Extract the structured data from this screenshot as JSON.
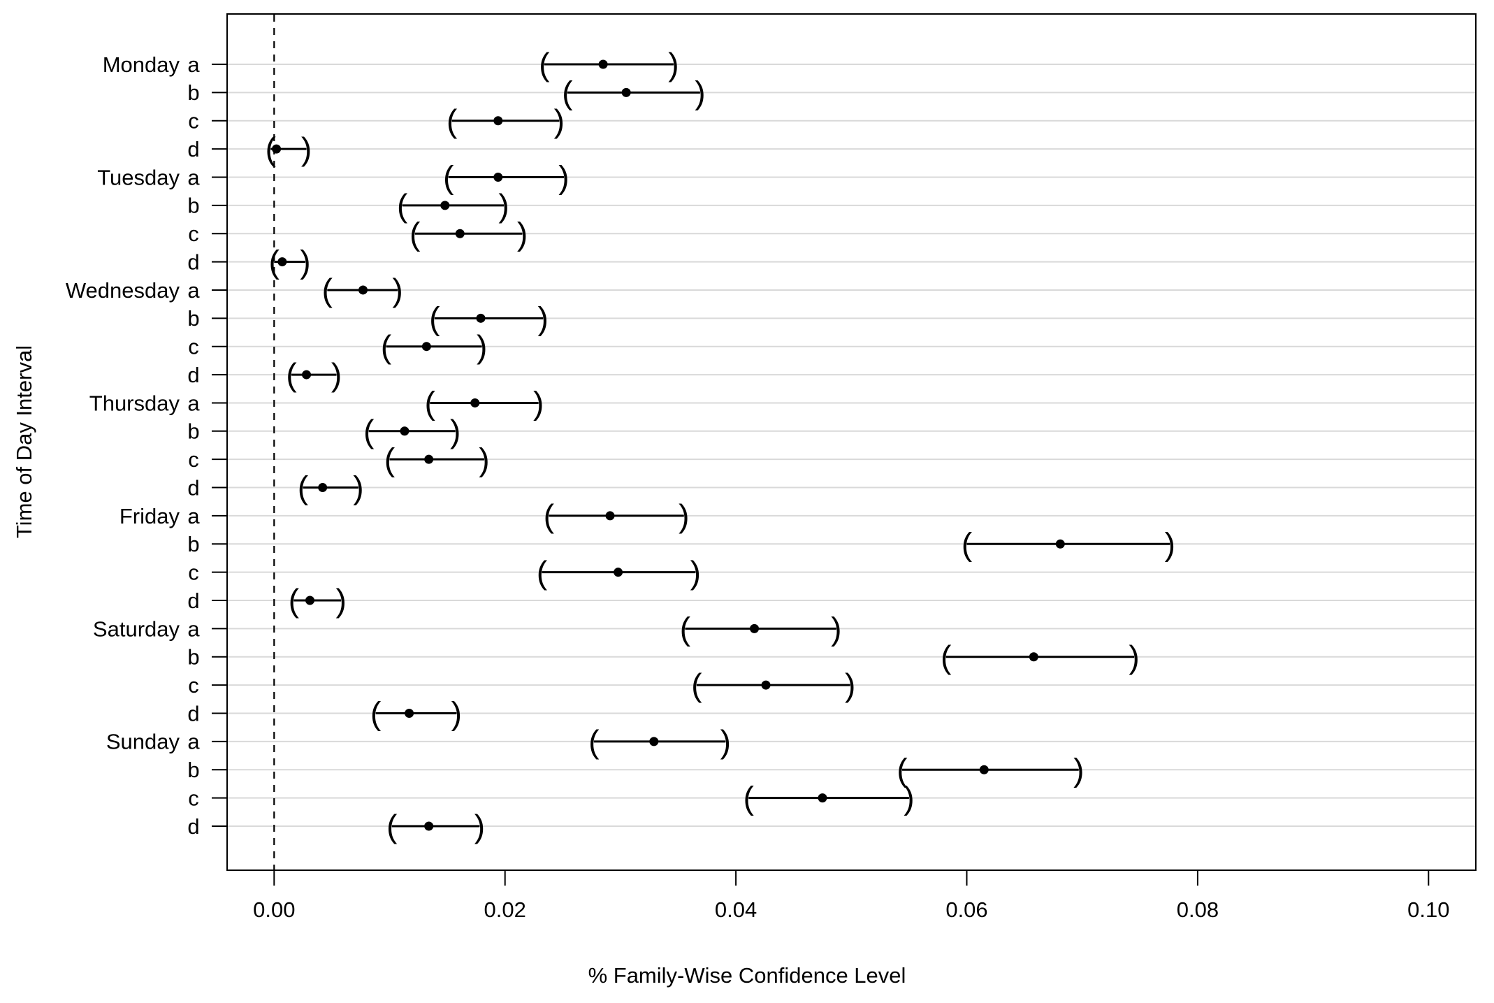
{
  "chart_data": {
    "type": "scatter",
    "variant": "dot-with-confidence-intervals",
    "title": "",
    "xlabel": "% Family-Wise Confidence Level",
    "ylabel": "Time of Day Interval",
    "x_tick_labels": [
      "0.00",
      "0.02",
      "0.04",
      "0.06",
      "0.08",
      "0.10"
    ],
    "x_tick_values": [
      0.0,
      0.02,
      0.04,
      0.06,
      0.08,
      0.1
    ],
    "xlim": [
      -0.0041,
      0.1041
    ],
    "grid": "horizontal-light-gray",
    "legend": "none",
    "reference_line": {
      "x": 0,
      "style": "dashed"
    },
    "interval_endpoint_glyphs": [
      "(",
      ")"
    ],
    "colors": {
      "point": "#000000",
      "interval": "#000000",
      "axis": "#000000",
      "grid": "#d9d9d9",
      "reference": "#000000",
      "background": "#ffffff"
    },
    "groups": [
      {
        "day": "Monday",
        "intervals": [
          {
            "label": "a",
            "estimate": 0.0285,
            "lower": 0.0234,
            "upper": 0.0346
          },
          {
            "label": "b",
            "estimate": 0.0305,
            "lower": 0.0254,
            "upper": 0.0369
          },
          {
            "label": "c",
            "estimate": 0.0194,
            "lower": 0.0154,
            "upper": 0.0247
          },
          {
            "label": "d",
            "estimate": 0.0002,
            "lower": -0.0003,
            "upper": 0.0028
          }
        ]
      },
      {
        "day": "Tuesday",
        "intervals": [
          {
            "label": "a",
            "estimate": 0.0194,
            "lower": 0.0151,
            "upper": 0.0251
          },
          {
            "label": "b",
            "estimate": 0.0148,
            "lower": 0.0111,
            "upper": 0.0199
          },
          {
            "label": "c",
            "estimate": 0.0161,
            "lower": 0.0122,
            "upper": 0.0215
          },
          {
            "label": "d",
            "estimate": 0.0007,
            "lower": 0.0,
            "upper": 0.0027
          }
        ]
      },
      {
        "day": "Wednesday",
        "intervals": [
          {
            "label": "a",
            "estimate": 0.0077,
            "lower": 0.0046,
            "upper": 0.0107
          },
          {
            "label": "b",
            "estimate": 0.0179,
            "lower": 0.0139,
            "upper": 0.0233
          },
          {
            "label": "c",
            "estimate": 0.0132,
            "lower": 0.0097,
            "upper": 0.018
          },
          {
            "label": "d",
            "estimate": 0.0028,
            "lower": 0.0015,
            "upper": 0.0054
          }
        ]
      },
      {
        "day": "Thursday",
        "intervals": [
          {
            "label": "a",
            "estimate": 0.0174,
            "lower": 0.0135,
            "upper": 0.0229
          },
          {
            "label": "b",
            "estimate": 0.0113,
            "lower": 0.0082,
            "upper": 0.0157
          },
          {
            "label": "c",
            "estimate": 0.0134,
            "lower": 0.01,
            "upper": 0.0182
          },
          {
            "label": "d",
            "estimate": 0.0042,
            "lower": 0.0025,
            "upper": 0.0073
          }
        ]
      },
      {
        "day": "Friday",
        "intervals": [
          {
            "label": "a",
            "estimate": 0.0291,
            "lower": 0.0238,
            "upper": 0.0355
          },
          {
            "label": "b",
            "estimate": 0.0681,
            "lower": 0.06,
            "upper": 0.0776
          },
          {
            "label": "c",
            "estimate": 0.0298,
            "lower": 0.0232,
            "upper": 0.0365
          },
          {
            "label": "d",
            "estimate": 0.0031,
            "lower": 0.0017,
            "upper": 0.0058
          }
        ]
      },
      {
        "day": "Saturday",
        "intervals": [
          {
            "label": "a",
            "estimate": 0.0416,
            "lower": 0.0356,
            "upper": 0.0487
          },
          {
            "label": "b",
            "estimate": 0.0658,
            "lower": 0.0582,
            "upper": 0.0745
          },
          {
            "label": "c",
            "estimate": 0.0426,
            "lower": 0.0366,
            "upper": 0.0499
          },
          {
            "label": "d",
            "estimate": 0.0117,
            "lower": 0.0088,
            "upper": 0.0158
          }
        ]
      },
      {
        "day": "Sunday",
        "intervals": [
          {
            "label": "a",
            "estimate": 0.0329,
            "lower": 0.0277,
            "upper": 0.0391
          },
          {
            "label": "b",
            "estimate": 0.0615,
            "lower": 0.0544,
            "upper": 0.0697
          },
          {
            "label": "c",
            "estimate": 0.0475,
            "lower": 0.0411,
            "upper": 0.055
          },
          {
            "label": "d",
            "estimate": 0.0134,
            "lower": 0.0102,
            "upper": 0.0178
          }
        ]
      }
    ]
  }
}
